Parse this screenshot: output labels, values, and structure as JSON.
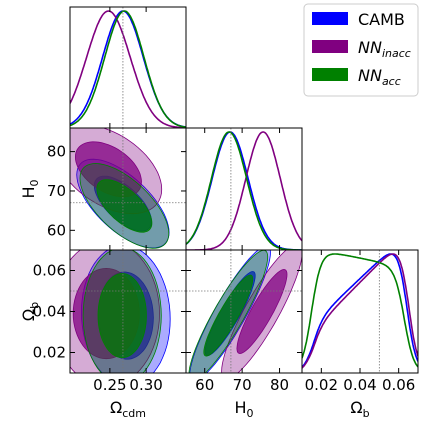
{
  "chart_data": {
    "type": "triangle-corner",
    "parameters": [
      {
        "key": "omega_cdm",
        "label_base": "Ω",
        "label_sub": "cdm",
        "range": [
          0.195,
          0.355
        ],
        "ticks": [
          0.25,
          0.3
        ],
        "tick_labels": [
          "0.25",
          "0.30"
        ],
        "truth": 0.268
      },
      {
        "key": "H0",
        "label_base": "H",
        "label_sub": "0",
        "range": [
          55,
          86
        ],
        "ticks": [
          60,
          70,
          80
        ],
        "tick_labels": [
          "60",
          "70",
          "80"
        ],
        "truth": 67
      },
      {
        "key": "omega_b",
        "label_base": "Ω",
        "label_sub": "b",
        "range": [
          0.01,
          0.07
        ],
        "ticks": [
          0.02,
          0.04,
          0.06
        ],
        "tick_labels": [
          "0.02",
          "0.04",
          "0.06"
        ],
        "truth": 0.05
      }
    ],
    "legend": {
      "placement": "top-right",
      "entries": [
        {
          "label_base": "CAMB",
          "label_sub": "",
          "color": "#0000ff"
        },
        {
          "label_base": "NN",
          "label_sub": "inacc",
          "color": "#800080"
        },
        {
          "label_base": "NN",
          "label_sub": "acc",
          "color": "#008000"
        }
      ]
    },
    "series": [
      {
        "name": "CAMB",
        "color": "#0000ff",
        "marginals": {
          "omega_cdm": {
            "mean": 0.268,
            "sd": 0.028
          },
          "H0": {
            "mean": 66.8,
            "sd": 4.8
          },
          "omega_b": {
            "kind": "flat",
            "lo": 0.015,
            "hi": 0.064,
            "start_level": 0.35,
            "end_level": 1.0
          }
        },
        "pairs": {
          "H0_vs_omega_cdm": {
            "mean": [
              0.268,
              66.8
            ],
            "sd": [
              0.026,
              4.6
            ],
            "rho": -0.65
          },
          "omega_b_vs_omega_cdm": {
            "mean": [
              0.272,
              0.038
            ],
            "sd": [
              0.025,
              0.014
            ],
            "rho": -0.05
          },
          "omega_b_vs_H0": {
            "mean": [
              66.8,
              0.039
            ],
            "sd": [
              4.4,
              0.0135
            ],
            "rho": 0.9
          }
        }
      },
      {
        "name": "NN_inacc",
        "color": "#800080",
        "marginals": {
          "omega_cdm": {
            "mean": 0.248,
            "sd": 0.03
          },
          "H0": {
            "mean": 75.6,
            "sd": 4.6
          },
          "omega_b": {
            "kind": "flat",
            "lo": 0.015,
            "hi": 0.065,
            "start_level": 0.3,
            "end_level": 1.0
          }
        },
        "pairs": {
          "H0_vs_omega_cdm": {
            "mean": [
              0.248,
              75.5
            ],
            "sd": [
              0.03,
              4.6
            ],
            "rho": -0.45
          },
          "omega_b_vs_omega_cdm": {
            "mean": [
              0.245,
              0.039
            ],
            "sd": [
              0.03,
              0.0145
            ],
            "rho": 0.0
          },
          "omega_b_vs_H0": {
            "mean": [
              75.3,
              0.04
            ],
            "sd": [
              4.4,
              0.0135
            ],
            "rho": 0.88
          }
        }
      },
      {
        "name": "NN_acc",
        "color": "#008000",
        "marginals": {
          "omega_cdm": {
            "mean": 0.27,
            "sd": 0.027
          },
          "H0": {
            "mean": 66.5,
            "sd": 4.7
          },
          "omega_b": {
            "kind": "flat",
            "lo": 0.015,
            "hi": 0.063,
            "start_level": 1.0,
            "end_level": 0.85
          }
        },
        "pairs": {
          "H0_vs_omega_cdm": {
            "mean": [
              0.27,
              66.2
            ],
            "sd": [
              0.025,
              4.4
            ],
            "rho": -0.65
          },
          "omega_b_vs_omega_cdm": {
            "mean": [
              0.267,
              0.038
            ],
            "sd": [
              0.022,
              0.0135
            ],
            "rho": 0.0
          },
          "omega_b_vs_H0": {
            "mean": [
              66.3,
              0.038
            ],
            "sd": [
              4.3,
              0.013
            ],
            "rho": 0.9
          }
        }
      }
    ]
  }
}
